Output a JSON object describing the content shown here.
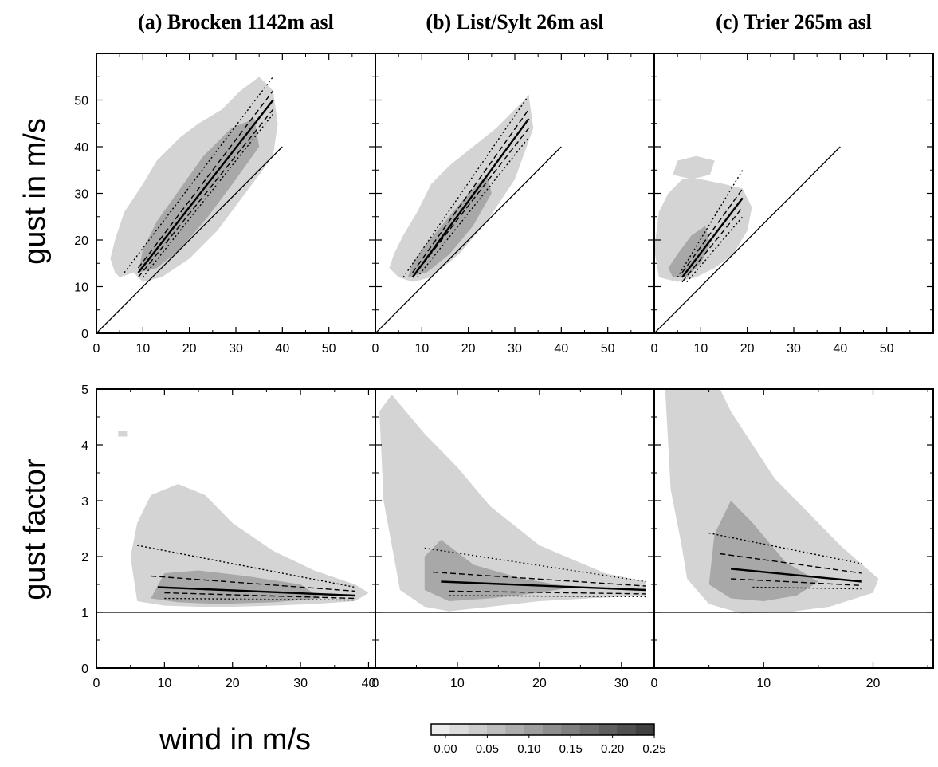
{
  "figure": {
    "ylabel_top": "gust in m/s",
    "ylabel_bottom": "gust factor",
    "xlabel": "wind in m/s",
    "colorbar": {
      "ticks": [
        "0.00",
        "0.05",
        "0.10",
        "0.15",
        "0.20",
        "0.25"
      ],
      "range": [
        0,
        0.25
      ],
      "levels": 12,
      "colormap": "greys"
    },
    "colors": {
      "density_low": "#d9d9d9",
      "density_high": "#4a4a4a",
      "line": "#000000"
    }
  },
  "chart_data": [
    {
      "id": "a-gust",
      "type": "heatmap",
      "title": "(a) Brocken 1142m asl",
      "xlabel": "",
      "ylabel": "gust in m/s",
      "xlim": [
        0,
        60
      ],
      "ylim": [
        0,
        60
      ],
      "xticks": [
        0,
        10,
        20,
        30,
        40,
        50
      ],
      "yticks": [
        0,
        10,
        20,
        30,
        40,
        50
      ],
      "reference_line": {
        "x": [
          0,
          40
        ],
        "y": [
          0,
          40
        ]
      },
      "density_region": [
        [
          5,
          12
        ],
        [
          8,
          13
        ],
        [
          10,
          11
        ],
        [
          14,
          12
        ],
        [
          20,
          16
        ],
        [
          26,
          22
        ],
        [
          32,
          30
        ],
        [
          38,
          38
        ],
        [
          39,
          45
        ],
        [
          38,
          52
        ],
        [
          35,
          55
        ],
        [
          31,
          52
        ],
        [
          27,
          48
        ],
        [
          22,
          45
        ],
        [
          18,
          42
        ],
        [
          13,
          37
        ],
        [
          10,
          32
        ],
        [
          6,
          26
        ],
        [
          4,
          20
        ],
        [
          3,
          16
        ],
        [
          4,
          13
        ]
      ],
      "density_core": [
        [
          9,
          13
        ],
        [
          13,
          14
        ],
        [
          18,
          18
        ],
        [
          24,
          25
        ],
        [
          30,
          33
        ],
        [
          35,
          40
        ],
        [
          34,
          46
        ],
        [
          29,
          44
        ],
        [
          23,
          38
        ],
        [
          18,
          31
        ],
        [
          13,
          24
        ],
        [
          10,
          18
        ]
      ],
      "series": [
        {
          "style": "solid",
          "x": [
            9,
            38
          ],
          "y": [
            13,
            50
          ]
        },
        {
          "style": "dashed",
          "x": [
            9,
            38
          ],
          "y": [
            14,
            52
          ]
        },
        {
          "style": "dashed",
          "x": [
            9,
            38
          ],
          "y": [
            12,
            48
          ]
        },
        {
          "style": "dotted",
          "x": [
            6,
            38
          ],
          "y": [
            13,
            55
          ]
        },
        {
          "style": "dotted",
          "x": [
            10,
            38
          ],
          "y": [
            12,
            47
          ]
        }
      ]
    },
    {
      "id": "b-gust",
      "type": "heatmap",
      "title": "(b) List/Sylt 26m asl",
      "xlabel": "",
      "ylabel": "",
      "xlim": [
        0,
        60
      ],
      "ylim": [
        0,
        60
      ],
      "xticks": [
        0,
        10,
        20,
        30,
        40,
        50
      ],
      "yticks": [
        0,
        10,
        20,
        30,
        40,
        50
      ],
      "reference_line": {
        "x": [
          0,
          40
        ],
        "y": [
          0,
          40
        ]
      },
      "density_region": [
        [
          5,
          12
        ],
        [
          8,
          11
        ],
        [
          12,
          12
        ],
        [
          18,
          17
        ],
        [
          24,
          24
        ],
        [
          30,
          33
        ],
        [
          34,
          44
        ],
        [
          33,
          51
        ],
        [
          30,
          48
        ],
        [
          26,
          44
        ],
        [
          21,
          40
        ],
        [
          16,
          36
        ],
        [
          12,
          32
        ],
        [
          9,
          26
        ],
        [
          6,
          21
        ],
        [
          4,
          17
        ],
        [
          3,
          14
        ]
      ],
      "density_core": [
        [
          7,
          12
        ],
        [
          11,
          13
        ],
        [
          16,
          17
        ],
        [
          21,
          23
        ],
        [
          25,
          30
        ],
        [
          24,
          34
        ],
        [
          20,
          30
        ],
        [
          15,
          24
        ],
        [
          10,
          18
        ],
        [
          8,
          15
        ]
      ],
      "series": [
        {
          "style": "solid",
          "x": [
            8,
            33
          ],
          "y": [
            12,
            46
          ]
        },
        {
          "style": "dashed",
          "x": [
            8,
            33
          ],
          "y": [
            13,
            48
          ]
        },
        {
          "style": "dashed",
          "x": [
            8,
            33
          ],
          "y": [
            12,
            44
          ]
        },
        {
          "style": "dotted",
          "x": [
            6,
            33
          ],
          "y": [
            12,
            51
          ]
        },
        {
          "style": "dotted",
          "x": [
            9,
            33
          ],
          "y": [
            12,
            42
          ]
        }
      ]
    },
    {
      "id": "c-gust",
      "type": "heatmap",
      "title": "(c) Trier 265m asl",
      "xlabel": "",
      "ylabel": "",
      "xlim": [
        0,
        60
      ],
      "ylim": [
        0,
        60
      ],
      "xticks": [
        0,
        10,
        20,
        30,
        40,
        50
      ],
      "yticks": [
        0,
        10,
        20,
        30,
        40,
        50
      ],
      "reference_line": {
        "x": [
          0,
          40
        ],
        "y": [
          0,
          40
        ]
      },
      "density_region": [
        [
          1,
          12
        ],
        [
          5,
          11
        ],
        [
          9,
          12
        ],
        [
          13,
          14
        ],
        [
          17,
          17
        ],
        [
          20,
          22
        ],
        [
          21,
          27
        ],
        [
          19,
          31
        ],
        [
          15,
          32
        ],
        [
          10,
          33
        ],
        [
          6,
          33
        ],
        [
          3,
          30
        ],
        [
          1,
          26
        ],
        [
          0,
          18
        ]
      ],
      "density_core": [
        [
          4,
          12
        ],
        [
          7,
          12
        ],
        [
          10,
          15
        ],
        [
          12,
          19
        ],
        [
          11,
          23
        ],
        [
          8,
          21
        ],
        [
          5,
          17
        ],
        [
          3,
          14
        ]
      ],
      "extra_blobs": [
        [
          [
            4,
            34
          ],
          [
            8,
            33
          ],
          [
            12,
            34
          ],
          [
            13,
            37
          ],
          [
            9,
            38
          ],
          [
            5,
            37
          ]
        ]
      ],
      "series": [
        {
          "style": "solid",
          "x": [
            6,
            19
          ],
          "y": [
            12,
            29
          ]
        },
        {
          "style": "dashed",
          "x": [
            6,
            19
          ],
          "y": [
            13,
            31
          ]
        },
        {
          "style": "dashed",
          "x": [
            6,
            19
          ],
          "y": [
            11,
            27
          ]
        },
        {
          "style": "dotted",
          "x": [
            5,
            19
          ],
          "y": [
            12,
            35
          ]
        },
        {
          "style": "dotted",
          "x": [
            7,
            19
          ],
          "y": [
            11,
            25
          ]
        }
      ]
    },
    {
      "id": "a-factor",
      "type": "heatmap",
      "title": "",
      "xlabel": "",
      "ylabel": "gust factor",
      "xlim": [
        0,
        41
      ],
      "ylim": [
        0,
        5
      ],
      "xticks": [
        0,
        10,
        20,
        30,
        40
      ],
      "yticks": [
        0,
        1,
        2,
        3,
        4,
        5
      ],
      "reference_line": {
        "x": [
          0,
          41
        ],
        "y": [
          1,
          1
        ]
      },
      "density_region": [
        [
          6,
          1.2
        ],
        [
          10,
          1.12
        ],
        [
          15,
          1.1
        ],
        [
          20,
          1.1
        ],
        [
          26,
          1.12
        ],
        [
          32,
          1.15
        ],
        [
          38,
          1.2
        ],
        [
          40,
          1.35
        ],
        [
          38,
          1.5
        ],
        [
          32,
          1.75
        ],
        [
          26,
          2.1
        ],
        [
          20,
          2.6
        ],
        [
          16,
          3.1
        ],
        [
          12,
          3.3
        ],
        [
          8,
          3.1
        ],
        [
          6,
          2.6
        ],
        [
          5,
          2.0
        ]
      ],
      "density_core": [
        [
          8,
          1.25
        ],
        [
          12,
          1.18
        ],
        [
          18,
          1.15
        ],
        [
          26,
          1.18
        ],
        [
          33,
          1.25
        ],
        [
          30,
          1.5
        ],
        [
          22,
          1.65
        ],
        [
          15,
          1.75
        ],
        [
          10,
          1.7
        ]
      ],
      "extra_blobs": [
        [
          [
            3.2,
            4.25
          ],
          [
            4.5,
            4.25
          ],
          [
            4.5,
            4.15
          ],
          [
            3.2,
            4.15
          ]
        ]
      ],
      "series": [
        {
          "style": "solid",
          "x": [
            9,
            38
          ],
          "y": [
            1.45,
            1.3
          ]
        },
        {
          "style": "dashed",
          "x": [
            8,
            38
          ],
          "y": [
            1.65,
            1.38
          ]
        },
        {
          "style": "dashed",
          "x": [
            10,
            38
          ],
          "y": [
            1.35,
            1.25
          ]
        },
        {
          "style": "dotted",
          "x": [
            6,
            38
          ],
          "y": [
            2.2,
            1.45
          ]
        },
        {
          "style": "dotted",
          "x": [
            10,
            38
          ],
          "y": [
            1.25,
            1.22
          ]
        }
      ]
    },
    {
      "id": "b-factor",
      "type": "heatmap",
      "title": "",
      "xlabel": "",
      "ylabel": "",
      "xlim": [
        0,
        34
      ],
      "ylim": [
        0,
        5
      ],
      "xticks": [
        0,
        10,
        20,
        30
      ],
      "yticks": [
        0,
        1,
        2,
        3,
        4,
        5
      ],
      "reference_line": {
        "x": [
          0,
          34
        ],
        "y": [
          1,
          1
        ]
      },
      "density_region": [
        [
          3,
          1.4
        ],
        [
          6,
          1.1
        ],
        [
          9,
          1.02
        ],
        [
          14,
          1.1
        ],
        [
          20,
          1.2
        ],
        [
          26,
          1.25
        ],
        [
          33,
          1.3
        ],
        [
          33,
          1.55
        ],
        [
          28,
          1.7
        ],
        [
          20,
          2.2
        ],
        [
          14,
          2.9
        ],
        [
          10,
          3.6
        ],
        [
          6,
          4.2
        ],
        [
          2,
          4.9
        ],
        [
          0.5,
          4.6
        ],
        [
          1,
          3.0
        ]
      ],
      "density_core": [
        [
          6,
          1.4
        ],
        [
          9,
          1.2
        ],
        [
          14,
          1.25
        ],
        [
          20,
          1.35
        ],
        [
          24,
          1.45
        ],
        [
          18,
          1.6
        ],
        [
          12,
          1.85
        ],
        [
          8,
          2.3
        ],
        [
          6,
          2.0
        ]
      ],
      "series": [
        {
          "style": "solid",
          "x": [
            8,
            33
          ],
          "y": [
            1.55,
            1.4
          ]
        },
        {
          "style": "dashed",
          "x": [
            7,
            33
          ],
          "y": [
            1.72,
            1.47
          ]
        },
        {
          "style": "dashed",
          "x": [
            9,
            33
          ],
          "y": [
            1.38,
            1.33
          ]
        },
        {
          "style": "dotted",
          "x": [
            6,
            33
          ],
          "y": [
            2.15,
            1.55
          ]
        },
        {
          "style": "dotted",
          "x": [
            9,
            33
          ],
          "y": [
            1.3,
            1.28
          ]
        }
      ]
    },
    {
      "id": "c-factor",
      "type": "heatmap",
      "title": "",
      "xlabel": "",
      "ylabel": "",
      "xlim": [
        0,
        25.5
      ],
      "ylim": [
        0,
        5
      ],
      "xticks": [
        0,
        10,
        20
      ],
      "yticks": [
        0,
        1,
        2,
        3,
        4,
        5
      ],
      "reference_line": {
        "x": [
          0,
          25.5
        ],
        "y": [
          1,
          1
        ]
      },
      "density_region": [
        [
          3,
          1.6
        ],
        [
          5,
          1.15
        ],
        [
          8,
          0.98
        ],
        [
          12,
          1.0
        ],
        [
          16,
          1.1
        ],
        [
          20,
          1.35
        ],
        [
          20.5,
          1.6
        ],
        [
          17,
          2.2
        ],
        [
          14,
          2.8
        ],
        [
          11,
          3.4
        ],
        [
          9,
          4.0
        ],
        [
          7,
          4.6
        ],
        [
          6,
          5.0
        ],
        [
          1,
          5.0
        ],
        [
          1.5,
          3.2
        ],
        [
          2.5,
          2.2
        ]
      ],
      "density_core": [
        [
          5,
          1.5
        ],
        [
          7,
          1.25
        ],
        [
          10,
          1.2
        ],
        [
          13,
          1.3
        ],
        [
          15,
          1.55
        ],
        [
          12,
          1.9
        ],
        [
          9,
          2.6
        ],
        [
          7,
          3.0
        ],
        [
          5.5,
          2.4
        ]
      ],
      "series": [
        {
          "style": "solid",
          "x": [
            7,
            19
          ],
          "y": [
            1.78,
            1.55
          ]
        },
        {
          "style": "dashed",
          "x": [
            6,
            19
          ],
          "y": [
            2.05,
            1.7
          ]
        },
        {
          "style": "dashed",
          "x": [
            7,
            19
          ],
          "y": [
            1.6,
            1.48
          ]
        },
        {
          "style": "dotted",
          "x": [
            5,
            19
          ],
          "y": [
            2.42,
            1.87
          ]
        },
        {
          "style": "dotted",
          "x": [
            9,
            19
          ],
          "y": [
            1.45,
            1.42
          ]
        }
      ]
    }
  ]
}
